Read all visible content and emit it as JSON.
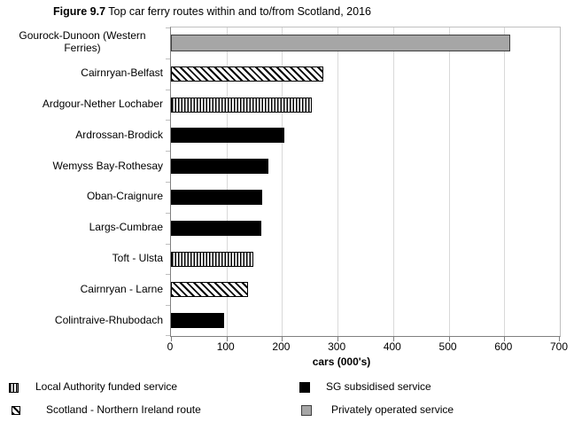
{
  "header": {
    "figure_label": "Figure 9.7",
    "title_text": "Top car ferry routes within and to/from Scotland, 2016"
  },
  "chart_data": {
    "type": "bar",
    "orientation": "horizontal",
    "title": "Figure 9.7 Top car ferry routes within and to/from Scotland, 2016",
    "categories": [
      "Gourock-Dunoon (Western Ferries)",
      "Cairnryan-Belfast",
      "Ardgour-Nether Lochaber",
      "Ardrossan-Brodick",
      "Wemyss Bay-Rothesay",
      "Oban-Craignure",
      "Largs-Cumbrae",
      "Toft - Ulsta",
      "Cairnryan - Larne",
      "Colintraive-Rhubodach"
    ],
    "values": [
      610,
      275,
      253,
      204,
      175,
      165,
      163,
      148,
      138,
      96
    ],
    "series_style": [
      "privately-operated",
      "scotland-ni",
      "local-authority",
      "sg-subsidised",
      "sg-subsidised",
      "sg-subsidised",
      "sg-subsidised",
      "local-authority",
      "scotland-ni",
      "sg-subsidised"
    ],
    "xlabel": "cars (000's)",
    "ylabel": "",
    "xlim": [
      0,
      700
    ],
    "xticks": [
      0,
      100,
      200,
      300,
      400,
      500,
      600,
      700
    ],
    "grid": true,
    "legend_position": "bottom",
    "legend": [
      {
        "label": "Local Authority funded service",
        "style": "local-authority",
        "pattern": "vertical-hatch"
      },
      {
        "label": "Scotland - Northern Ireland route",
        "style": "scotland-ni",
        "pattern": "diagonal-hatch"
      },
      {
        "label": "SG subsidised service",
        "style": "sg-subsidised",
        "pattern": "solid-black"
      },
      {
        "label": "Privately operated service",
        "style": "privately-operated",
        "pattern": "solid-gray"
      }
    ],
    "colors": {
      "bar_black": "#000000",
      "bar_gray": "#a6a6a6",
      "gridline": "#d9d9d9",
      "axis": "#808080"
    }
  }
}
